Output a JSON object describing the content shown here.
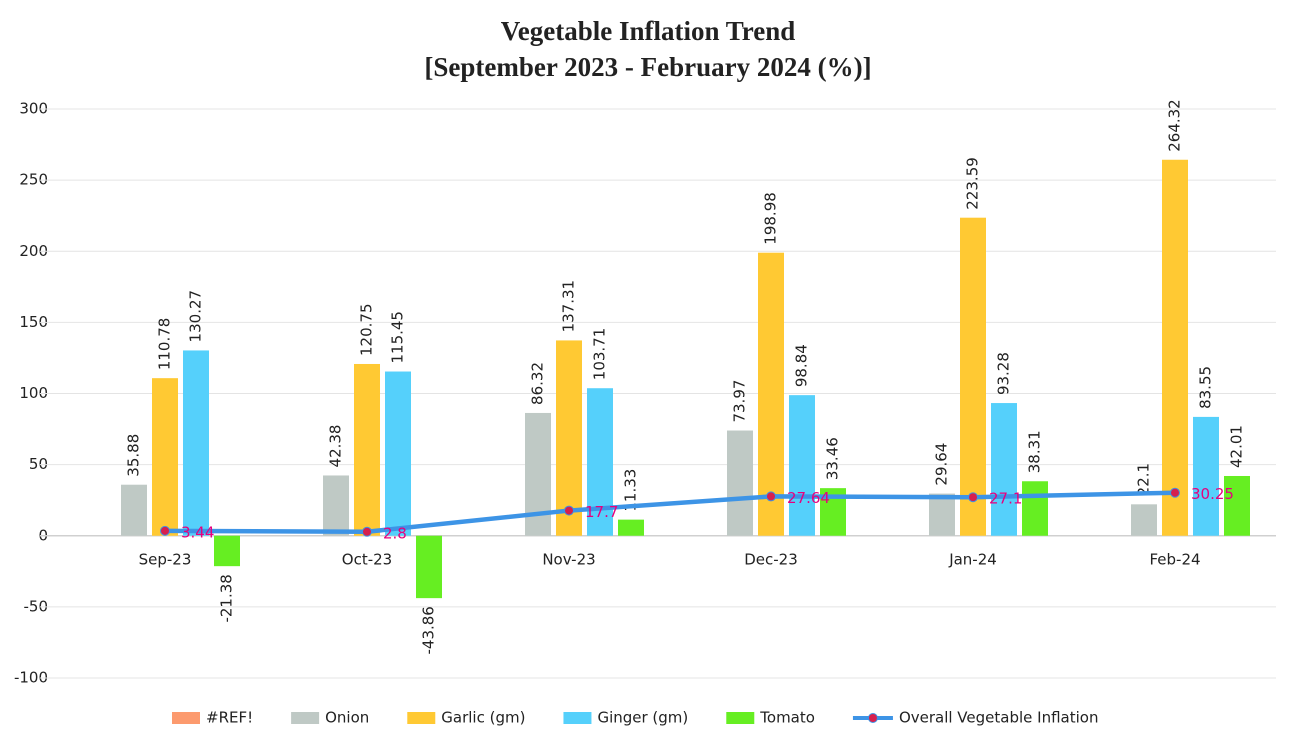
{
  "chart_data": {
    "type": "bar",
    "title": "Vegetable Inflation Trend",
    "subtitle": "[September 2023 - February 2024 (%)]",
    "categories": [
      "Sep-23",
      "Oct-23",
      "Nov-23",
      "Dec-23",
      "Jan-24",
      "Feb-24"
    ],
    "series": [
      {
        "name": "#REF!",
        "color": "#fc9a6e",
        "values": [
          null,
          null,
          null,
          null,
          null,
          null
        ]
      },
      {
        "name": "Onion",
        "color": "#bfc9c5",
        "values": [
          35.88,
          42.38,
          86.32,
          73.97,
          29.64,
          22.1
        ]
      },
      {
        "name": "Garlic (gm)",
        "color": "#ffc933",
        "values": [
          110.78,
          120.75,
          137.31,
          198.98,
          223.59,
          264.32
        ]
      },
      {
        "name": "Ginger (gm)",
        "color": "#55d0fb",
        "values": [
          130.27,
          115.45,
          103.71,
          98.84,
          93.28,
          83.55
        ]
      },
      {
        "name": "Tomato",
        "color": "#66ee22",
        "values": [
          -21.38,
          -43.86,
          11.33,
          33.46,
          38.31,
          42.01
        ]
      },
      {
        "name": "Overall Vegetable Inflation",
        "type": "line",
        "color": "#3d94e6",
        "marker_color": "#d6204e",
        "label_color": "#e6007e",
        "values": [
          3.44,
          2.8,
          17.7,
          27.64,
          27.1,
          30.25
        ]
      }
    ],
    "ylim": [
      -100,
      300
    ],
    "yticks": [
      -100,
      -50,
      0,
      50,
      100,
      150,
      200,
      250,
      300
    ],
    "grid": true,
    "legend": "bottom"
  }
}
